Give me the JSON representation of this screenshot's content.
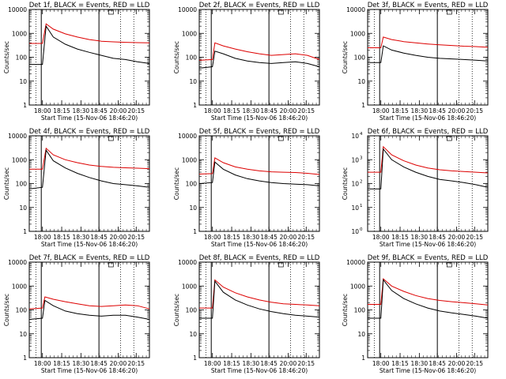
{
  "figure": {
    "panel_titles": [
      "Det 1f, BLACK = Events, RED = LLD",
      "Det 2f, BLACK = Events, RED = LLD",
      "Det 3f, BLACK = Events, RED = LLD",
      "Det 4f, BLACK = Events, RED = LLD",
      "Det 5f, BLACK = Events, RED = LLD",
      "Det 6f, BLACK = Events, RED = LLD",
      "Det 7f, BLACK = Events, RED = LLD",
      "Det 8f, BLACK = Events, RED = LLD",
      "Det 9f, BLACK = Events, RED = LLD"
    ],
    "xlabel": "Start Time (15-Nov-06 18:46:20)",
    "ylabel": "Counts/sec",
    "xtick_labels": [
      "18:00",
      "18:15",
      "18:30",
      "18:45",
      "20:00",
      "20:15"
    ],
    "ytick_labels_plain": [
      "1",
      "10",
      "100",
      "1000",
      "10000"
    ],
    "ytick_labels_exp": [
      "10",
      "10",
      "10",
      "10",
      "10"
    ],
    "ytick_exponents": [
      "0",
      "1",
      "2",
      "3",
      "4"
    ],
    "colors": {
      "events": "#000000",
      "lld": "#dd0000"
    }
  },
  "chart_data": [
    {
      "type": "line",
      "title": "Det 1f, BLACK = Events, RED = LLD",
      "ylog": true,
      "ylim": [
        1,
        10000
      ],
      "xlabel": "Start Time (15-Nov-06 18:46:20)",
      "ylabel": "Counts/sec",
      "x_ticks": [
        "18:00",
        "18:15",
        "18:30",
        "18:45",
        "20:00",
        "20:15"
      ],
      "series": [
        {
          "x": [
            0,
            0.11,
            0.14,
            0.2,
            0.3,
            0.4,
            0.5,
            0.6,
            0.7,
            0.8,
            0.9,
            1.0
          ],
          "y": [
            50,
            50,
            2000,
            700,
            350,
            220,
            160,
            120,
            90,
            80,
            65,
            55
          ]
        },
        {
          "x": [
            0,
            0.11,
            0.14,
            0.2,
            0.3,
            0.4,
            0.5,
            0.6,
            0.7,
            0.8,
            0.9,
            1.0
          ],
          "y": [
            380,
            380,
            2500,
            1500,
            950,
            700,
            550,
            470,
            440,
            420,
            410,
            400
          ]
        }
      ]
    },
    {
      "type": "line",
      "title": "Det 2f, BLACK = Events, RED = LLD",
      "ylog": true,
      "ylim": [
        1,
        10000
      ],
      "xlabel": "Start Time (15-Nov-06 18:46:20)",
      "ylabel": "Counts/sec",
      "x_ticks": [
        "18:00",
        "18:15",
        "18:30",
        "18:45",
        "20:00",
        "20:15"
      ],
      "series": [
        {
          "x": [
            0,
            0.11,
            0.13,
            0.2,
            0.3,
            0.4,
            0.5,
            0.6,
            0.7,
            0.8,
            0.9,
            1.0
          ],
          "y": [
            35,
            40,
            180,
            140,
            90,
            70,
            60,
            55,
            60,
            65,
            55,
            40
          ]
        },
        {
          "x": [
            0,
            0.11,
            0.13,
            0.2,
            0.3,
            0.4,
            0.5,
            0.6,
            0.7,
            0.8,
            0.9,
            1.0
          ],
          "y": [
            75,
            80,
            400,
            300,
            220,
            170,
            140,
            120,
            130,
            140,
            120,
            80
          ]
        }
      ]
    },
    {
      "type": "line",
      "title": "Det 3f, BLACK = Events, RED = LLD",
      "ylog": true,
      "ylim": [
        1,
        10000
      ],
      "xlabel": "Start Time (15-Nov-06 18:46:20)",
      "ylabel": "Counts/sec",
      "x_ticks": [
        "18:00",
        "18:15",
        "18:30",
        "18:45",
        "20:00",
        "20:15"
      ],
      "series": [
        {
          "x": [
            0,
            0.11,
            0.13,
            0.2,
            0.3,
            0.4,
            0.5,
            0.6,
            0.7,
            0.8,
            0.9,
            1.0
          ],
          "y": [
            60,
            60,
            300,
            200,
            150,
            120,
            100,
            90,
            85,
            80,
            75,
            70
          ]
        },
        {
          "x": [
            0,
            0.11,
            0.13,
            0.2,
            0.3,
            0.4,
            0.5,
            0.6,
            0.7,
            0.8,
            0.9,
            1.0
          ],
          "y": [
            250,
            250,
            700,
            550,
            450,
            400,
            360,
            330,
            310,
            290,
            280,
            260
          ]
        }
      ]
    },
    {
      "type": "line",
      "title": "Det 4f, BLACK = Events, RED = LLD",
      "ylog": true,
      "ylim": [
        1,
        10000
      ],
      "xlabel": "Start Time (15-Nov-06 18:46:20)",
      "ylabel": "Counts/sec",
      "x_ticks": [
        "18:00",
        "18:15",
        "18:30",
        "18:45",
        "20:00",
        "20:15"
      ],
      "series": [
        {
          "x": [
            0,
            0.11,
            0.14,
            0.2,
            0.3,
            0.4,
            0.5,
            0.6,
            0.7,
            0.8,
            0.9,
            1.0
          ],
          "y": [
            60,
            70,
            2500,
            900,
            450,
            270,
            180,
            130,
            100,
            90,
            80,
            70
          ]
        },
        {
          "x": [
            0,
            0.11,
            0.14,
            0.2,
            0.3,
            0.4,
            0.5,
            0.6,
            0.7,
            0.8,
            0.9,
            1.0
          ],
          "y": [
            400,
            400,
            3000,
            1600,
            1000,
            750,
            600,
            520,
            480,
            460,
            440,
            420
          ]
        }
      ]
    },
    {
      "type": "line",
      "title": "Det 5f, BLACK = Events, RED = LLD",
      "ylog": true,
      "ylim": [
        1,
        10000
      ],
      "xlabel": "Start Time (15-Nov-06 18:46:20)",
      "ylabel": "Counts/sec",
      "x_ticks": [
        "18:00",
        "18:15",
        "18:30",
        "18:45",
        "20:00",
        "20:15"
      ],
      "series": [
        {
          "x": [
            0,
            0.11,
            0.13,
            0.2,
            0.3,
            0.4,
            0.5,
            0.6,
            0.7,
            0.8,
            0.9,
            1.0
          ],
          "y": [
            100,
            110,
            800,
            400,
            230,
            160,
            130,
            110,
            100,
            95,
            90,
            80
          ]
        },
        {
          "x": [
            0,
            0.11,
            0.13,
            0.2,
            0.3,
            0.4,
            0.5,
            0.6,
            0.7,
            0.8,
            0.9,
            1.0
          ],
          "y": [
            250,
            260,
            1200,
            750,
            500,
            400,
            340,
            310,
            300,
            290,
            270,
            240
          ]
        }
      ]
    },
    {
      "type": "line",
      "title": "Det 6f, BLACK = Events, RED = LLD",
      "ylog": true,
      "ylim": [
        1,
        10000
      ],
      "xlabel": "Start Time (15-Nov-06 18:46:20)",
      "ylabel": "Counts/sec",
      "x_ticks": [
        "18:00",
        "18:15",
        "18:30",
        "18:45",
        "20:00",
        "20:15"
      ],
      "series": [
        {
          "x": [
            0,
            0.11,
            0.13,
            0.2,
            0.3,
            0.4,
            0.5,
            0.6,
            0.7,
            0.8,
            0.9,
            1.0
          ],
          "y": [
            60,
            60,
            2800,
            1000,
            500,
            300,
            200,
            150,
            130,
            110,
            90,
            70
          ]
        },
        {
          "x": [
            0,
            0.11,
            0.13,
            0.2,
            0.3,
            0.4,
            0.5,
            0.6,
            0.7,
            0.8,
            0.9,
            1.0
          ],
          "y": [
            300,
            300,
            3500,
            1600,
            900,
            600,
            450,
            380,
            340,
            320,
            300,
            280
          ]
        }
      ]
    },
    {
      "type": "line",
      "title": "Det 7f, BLACK = Events, RED = LLD",
      "ylog": true,
      "ylim": [
        1,
        10000
      ],
      "xlabel": "Start Time (15-Nov-06 18:46:20)",
      "ylabel": "Counts/sec",
      "x_ticks": [
        "18:00",
        "18:15",
        "18:30",
        "18:45",
        "20:00",
        "20:15"
      ],
      "series": [
        {
          "x": [
            0,
            0.11,
            0.13,
            0.2,
            0.3,
            0.4,
            0.5,
            0.6,
            0.7,
            0.8,
            0.9,
            1.0
          ],
          "y": [
            40,
            45,
            250,
            150,
            90,
            70,
            60,
            55,
            60,
            60,
            50,
            40
          ]
        },
        {
          "x": [
            0,
            0.11,
            0.13,
            0.2,
            0.3,
            0.4,
            0.5,
            0.6,
            0.7,
            0.8,
            0.9,
            1.0
          ],
          "y": [
            110,
            120,
            350,
            280,
            220,
            180,
            150,
            140,
            150,
            160,
            150,
            110
          ]
        }
      ]
    },
    {
      "type": "line",
      "title": "Det 8f, BLACK = Events, RED = LLD",
      "ylog": true,
      "ylim": [
        1,
        10000
      ],
      "xlabel": "Start Time (15-Nov-06 18:46:20)",
      "ylabel": "Counts/sec",
      "x_ticks": [
        "18:00",
        "18:15",
        "18:30",
        "18:45",
        "20:00",
        "20:15"
      ],
      "series": [
        {
          "x": [
            0,
            0.11,
            0.13,
            0.2,
            0.3,
            0.4,
            0.5,
            0.6,
            0.7,
            0.8,
            0.9,
            1.0
          ],
          "y": [
            45,
            45,
            1600,
            550,
            260,
            160,
            110,
            85,
            70,
            60,
            55,
            50
          ]
        },
        {
          "x": [
            0,
            0.11,
            0.13,
            0.2,
            0.3,
            0.4,
            0.5,
            0.6,
            0.7,
            0.8,
            0.9,
            1.0
          ],
          "y": [
            120,
            120,
            1800,
            900,
            520,
            350,
            260,
            210,
            180,
            170,
            160,
            150
          ]
        }
      ]
    },
    {
      "type": "line",
      "title": "Det 9f, BLACK = Events, RED = LLD",
      "ylog": true,
      "ylim": [
        1,
        10000
      ],
      "xlabel": "Start Time (15-Nov-06 18:46:20)",
      "ylabel": "Counts/sec",
      "x_ticks": [
        "18:00",
        "18:15",
        "18:30",
        "18:45",
        "20:00",
        "20:15"
      ],
      "series": [
        {
          "x": [
            0,
            0.11,
            0.13,
            0.2,
            0.3,
            0.4,
            0.5,
            0.6,
            0.7,
            0.8,
            0.9,
            1.0
          ],
          "y": [
            45,
            45,
            1800,
            650,
            300,
            180,
            120,
            90,
            75,
            65,
            55,
            45
          ]
        },
        {
          "x": [
            0,
            0.11,
            0.13,
            0.2,
            0.3,
            0.4,
            0.5,
            0.6,
            0.7,
            0.8,
            0.9,
            1.0
          ],
          "y": [
            170,
            170,
            2000,
            1000,
            600,
            400,
            300,
            250,
            220,
            200,
            180,
            160
          ]
        }
      ]
    }
  ]
}
